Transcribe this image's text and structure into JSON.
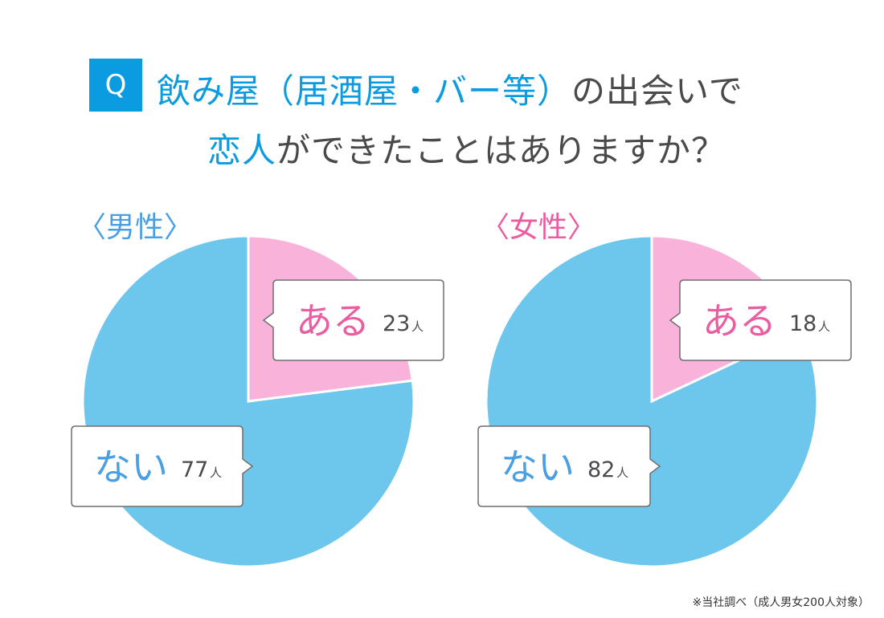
{
  "question": {
    "badge": "Q",
    "line1_accent": "飲み屋（居酒屋・バー等）",
    "line1_rest": "の出会いで",
    "line2_accent": "恋人",
    "line2_rest": "ができたことはありますか？"
  },
  "colors": {
    "accent": "#0a9be0",
    "pie_no": "#6dc6eb",
    "pie_yes": "#f9b2d9",
    "text_yes": "#ea5da0",
    "text_no": "#4a9fe2"
  },
  "chart_data": [
    {
      "type": "pie",
      "title": "〈男性〉",
      "categories": [
        "ある",
        "ない"
      ],
      "values": [
        23,
        77
      ],
      "unit": "人"
    },
    {
      "type": "pie",
      "title": "〈女性〉",
      "categories": [
        "ある",
        "ない"
      ],
      "values": [
        18,
        82
      ],
      "unit": "人"
    }
  ],
  "footnote": "※当社調べ（成人男女200人対象）"
}
